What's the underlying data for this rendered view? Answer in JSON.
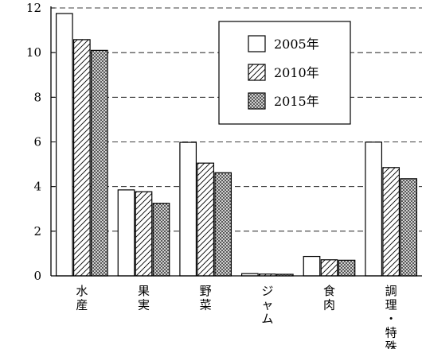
{
  "chart_data": {
    "type": "bar",
    "categories": [
      "水産",
      "果実",
      "野菜",
      "ジャム",
      "食肉",
      "調理・特殊"
    ],
    "series": [
      {
        "name": "2005年",
        "pattern": "white",
        "values": [
          11.75,
          3.85,
          5.98,
          0.1,
          0.87,
          5.99
        ]
      },
      {
        "name": "2010年",
        "pattern": "hatch",
        "values": [
          10.58,
          3.77,
          5.05,
          0.08,
          0.72,
          4.85
        ]
      },
      {
        "name": "2015年",
        "pattern": "dots",
        "values": [
          10.1,
          3.25,
          4.62,
          0.07,
          0.7,
          4.35
        ]
      }
    ],
    "ylim": [
      0,
      12
    ],
    "yticks": [
      0,
      2,
      4,
      6,
      8,
      10,
      12
    ],
    "grid": "dashed-horizontal",
    "legend": "top-right",
    "title": "",
    "xlabel": "",
    "ylabel": ""
  }
}
